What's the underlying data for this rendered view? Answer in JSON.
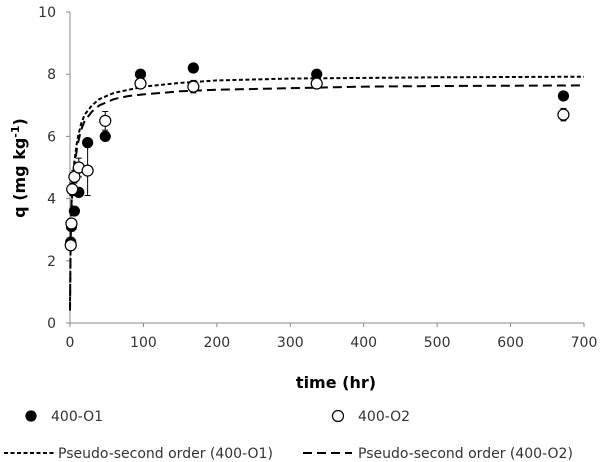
{
  "chart_data": {
    "type": "scatter",
    "xlabel": "time (hr)",
    "ylabel": "q (mg kg",
    "ylabel_sup": "-1",
    "ylabel_close": ")",
    "xlim": [
      0,
      700
    ],
    "ylim": [
      0,
      10
    ],
    "xticks": [
      0,
      100,
      200,
      300,
      400,
      500,
      600,
      700
    ],
    "yticks": [
      0,
      2,
      4,
      6,
      8,
      10
    ],
    "grid": false,
    "legend_position": "bottom",
    "series": [
      {
        "name": "400-O1",
        "kind": "points",
        "marker": "filled-circle",
        "points": [
          {
            "x": 1,
            "y": 2.6
          },
          {
            "x": 2,
            "y": 3.1
          },
          {
            "x": 6,
            "y": 3.6
          },
          {
            "x": 12,
            "y": 4.2
          },
          {
            "x": 24,
            "y": 5.8
          },
          {
            "x": 48,
            "y": 6.0
          },
          {
            "x": 96,
            "y": 8.0
          },
          {
            "x": 168,
            "y": 8.2
          },
          {
            "x": 336,
            "y": 8.0
          },
          {
            "x": 672,
            "y": 7.3
          }
        ]
      },
      {
        "name": "400-O2",
        "kind": "points",
        "marker": "open-circle",
        "points": [
          {
            "x": 1,
            "y": 2.5,
            "err": 0.1
          },
          {
            "x": 2,
            "y": 3.2,
            "err": 0.1
          },
          {
            "x": 3,
            "y": 4.3,
            "err": 0.2
          },
          {
            "x": 6,
            "y": 4.7,
            "err": 0.2
          },
          {
            "x": 12,
            "y": 5.0,
            "err": 0.3
          },
          {
            "x": 24,
            "y": 4.9,
            "err": 0.8
          },
          {
            "x": 48,
            "y": 6.5,
            "err": 0.3
          },
          {
            "x": 96,
            "y": 7.7,
            "err": 0.1
          },
          {
            "x": 168,
            "y": 7.6,
            "err": 0.2
          },
          {
            "x": 336,
            "y": 7.7,
            "err": 0.1
          },
          {
            "x": 672,
            "y": 6.7,
            "err": 0.2
          }
        ]
      },
      {
        "name": "Pseudo-second order (400-O1)",
        "kind": "line",
        "dash": "short",
        "points": [
          {
            "x": 0,
            "y": 0.5
          },
          {
            "x": 1,
            "y": 3.0
          },
          {
            "x": 2,
            "y": 3.8
          },
          {
            "x": 4,
            "y": 4.7
          },
          {
            "x": 6,
            "y": 5.2
          },
          {
            "x": 10,
            "y": 5.9
          },
          {
            "x": 15,
            "y": 6.4
          },
          {
            "x": 20,
            "y": 6.7
          },
          {
            "x": 30,
            "y": 7.0
          },
          {
            "x": 40,
            "y": 7.2
          },
          {
            "x": 60,
            "y": 7.4
          },
          {
            "x": 80,
            "y": 7.5
          },
          {
            "x": 100,
            "y": 7.6
          },
          {
            "x": 150,
            "y": 7.72
          },
          {
            "x": 200,
            "y": 7.8
          },
          {
            "x": 300,
            "y": 7.86
          },
          {
            "x": 400,
            "y": 7.88
          },
          {
            "x": 500,
            "y": 7.9
          },
          {
            "x": 600,
            "y": 7.91
          },
          {
            "x": 700,
            "y": 7.92
          }
        ]
      },
      {
        "name": "Pseudo-second order (400-O2)",
        "kind": "line",
        "dash": "long",
        "points": [
          {
            "x": 0,
            "y": 0.4
          },
          {
            "x": 1,
            "y": 2.9
          },
          {
            "x": 2,
            "y": 3.7
          },
          {
            "x": 4,
            "y": 4.5
          },
          {
            "x": 6,
            "y": 5.0
          },
          {
            "x": 10,
            "y": 5.7
          },
          {
            "x": 15,
            "y": 6.2
          },
          {
            "x": 20,
            "y": 6.5
          },
          {
            "x": 30,
            "y": 6.8
          },
          {
            "x": 40,
            "y": 7.0
          },
          {
            "x": 60,
            "y": 7.2
          },
          {
            "x": 80,
            "y": 7.3
          },
          {
            "x": 100,
            "y": 7.35
          },
          {
            "x": 150,
            "y": 7.45
          },
          {
            "x": 200,
            "y": 7.5
          },
          {
            "x": 300,
            "y": 7.55
          },
          {
            "x": 400,
            "y": 7.6
          },
          {
            "x": 500,
            "y": 7.62
          },
          {
            "x": 600,
            "y": 7.63
          },
          {
            "x": 700,
            "y": 7.64
          }
        ]
      }
    ]
  }
}
